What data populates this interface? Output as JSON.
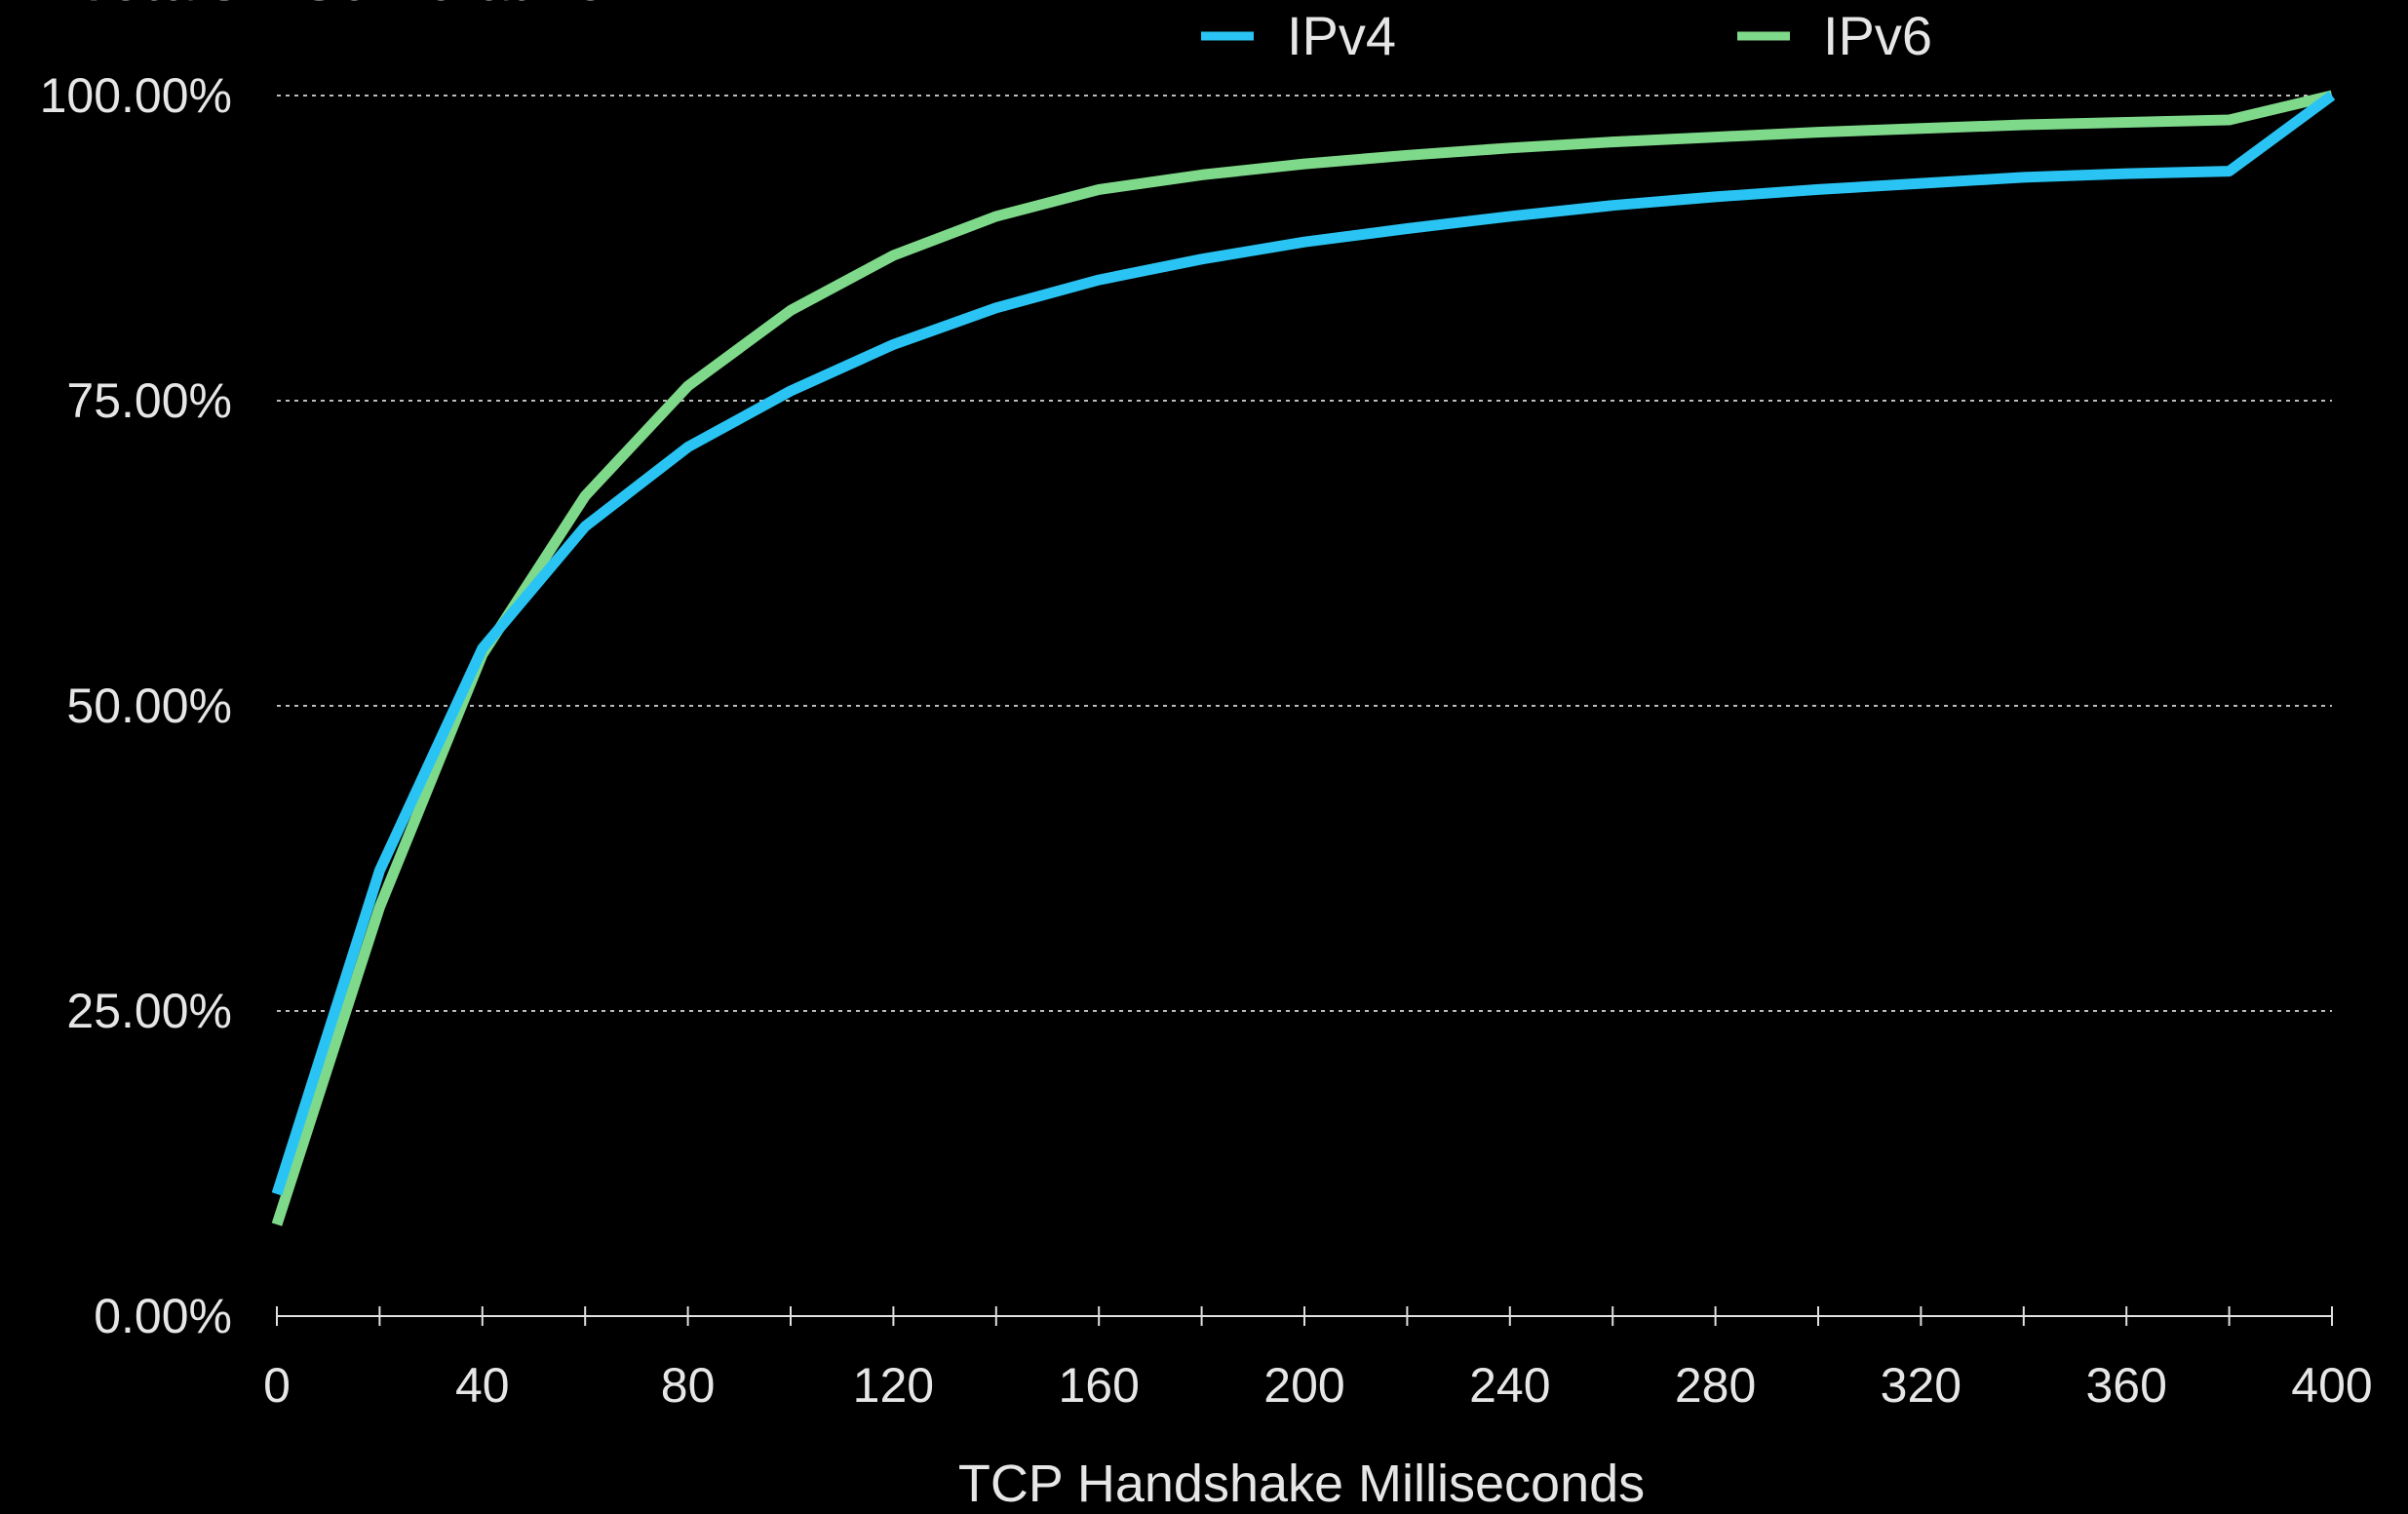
{
  "chart_data": {
    "type": "line",
    "title": "Totals - Cumulative",
    "xlabel": "TCP Handshake Milliseconds",
    "ylabel": "",
    "x": [
      0,
      20,
      40,
      60,
      80,
      100,
      120,
      140,
      160,
      180,
      200,
      220,
      240,
      260,
      280,
      300,
      320,
      340,
      360,
      380,
      400
    ],
    "xlim": [
      0,
      400
    ],
    "ylim": [
      0,
      100
    ],
    "x_ticks": [
      "0",
      "40",
      "80",
      "120",
      "160",
      "200",
      "240",
      "280",
      "320",
      "360",
      "400"
    ],
    "y_ticks": [
      "0.00%",
      "25.00%",
      "50.00%",
      "75.00%",
      "100.00%"
    ],
    "grid": "horizontal dotted",
    "legend": "top",
    "series": [
      {
        "name": "IPv4",
        "color": "#29c4f3",
        "values": [
          10,
          36.5,
          54.7,
          64.7,
          71.2,
          75.8,
          79.6,
          82.6,
          84.9,
          86.6,
          88.0,
          89.1,
          90.1,
          91.0,
          91.7,
          92.3,
          92.8,
          93.3,
          93.6,
          93.8,
          100
        ]
      },
      {
        "name": "IPv6",
        "color": "#7fd98a",
        "values": [
          7.5,
          33.5,
          54.2,
          67.2,
          76.2,
          82.4,
          86.9,
          90.1,
          92.3,
          93.5,
          94.4,
          95.1,
          95.7,
          96.2,
          96.6,
          97.0,
          97.3,
          97.6,
          97.8,
          98.0,
          100
        ]
      }
    ]
  }
}
